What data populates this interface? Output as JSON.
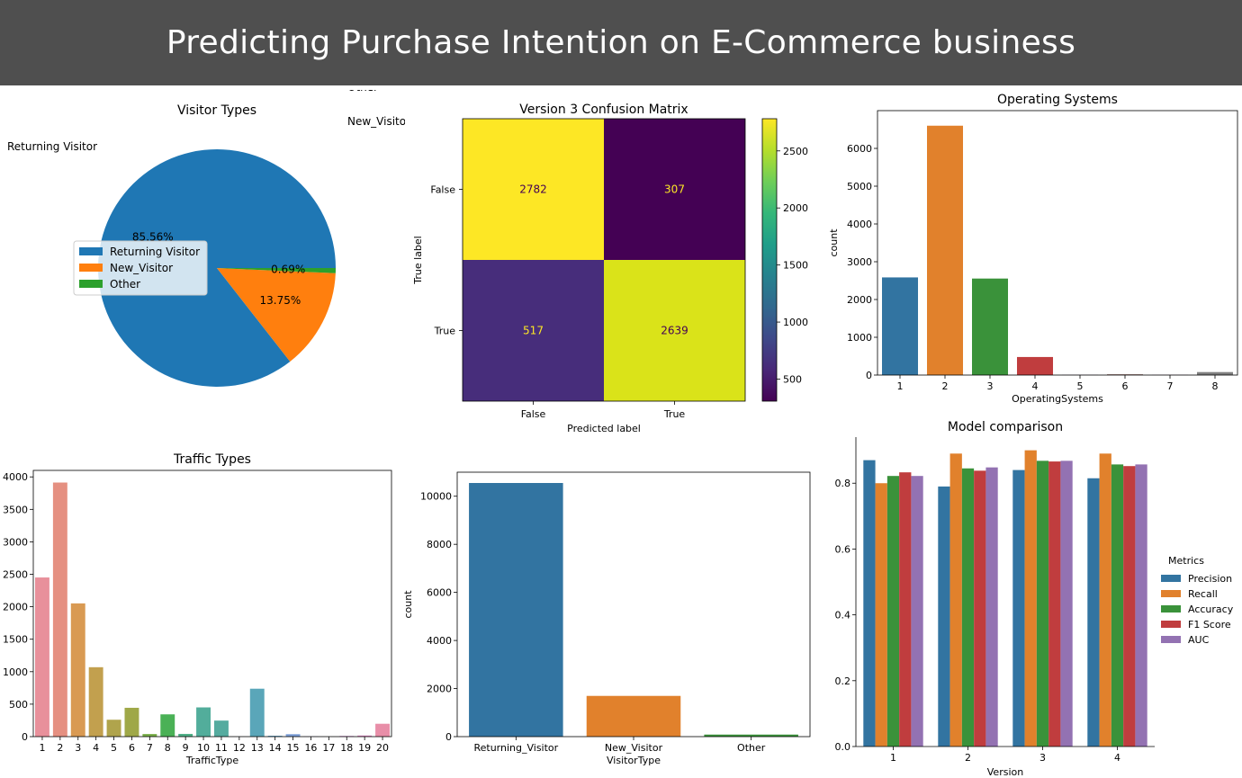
{
  "page": {
    "title": "Predicting Purchase Intention on E-Commerce business"
  },
  "chart_data": [
    {
      "id": "visitor_pie",
      "type": "pie",
      "title": "Visitor Types",
      "slices": [
        {
          "label": "Returning Visitor",
          "value": 85.56,
          "pct_label": "85.56%",
          "color": "#1f77b4"
        },
        {
          "label": "New_Visitor",
          "value": 13.75,
          "pct_label": "13.75%",
          "color": "#ff7f0e"
        },
        {
          "label": "Other",
          "value": 0.69,
          "pct_label": "0.69%",
          "color": "#2ca02c"
        }
      ],
      "legend": {
        "position": "center-left",
        "entries": [
          "Returning Visitor",
          "New_Visitor",
          "Other"
        ]
      }
    },
    {
      "id": "confusion_matrix",
      "type": "heatmap",
      "title": "Version 3 Confusion Matrix",
      "xlabel": "Predicted label",
      "ylabel": "True label",
      "x_categories": [
        "False",
        "True"
      ],
      "y_categories": [
        "False",
        "True"
      ],
      "values": [
        [
          2782,
          307
        ],
        [
          517,
          2639
        ]
      ],
      "cell_colors": [
        [
          "#fde725",
          "#440154"
        ],
        [
          "#472d7b",
          "#dae319"
        ]
      ],
      "text_colors": [
        [
          "#440154",
          "#fde725"
        ],
        [
          "#fde725",
          "#440154"
        ]
      ],
      "colorbar": {
        "ticks": [
          500,
          1000,
          1500,
          2000,
          2500
        ],
        "range": [
          307,
          2782
        ]
      }
    },
    {
      "id": "os_counts",
      "type": "bar",
      "title": "Operating Systems",
      "xlabel": "OperatingSystems",
      "ylabel": "count",
      "categories": [
        "1",
        "2",
        "3",
        "4",
        "5",
        "6",
        "7",
        "8"
      ],
      "values": [
        2585,
        6601,
        2555,
        478,
        6,
        19,
        7,
        79
      ],
      "colors": [
        "#3274a1",
        "#e1812c",
        "#3a923a",
        "#c03d3e",
        "#9372b2",
        "#845b53",
        "#d684bd",
        "#7f7f7f"
      ],
      "ylim": [
        0,
        7000
      ],
      "yticks": [
        0,
        1000,
        2000,
        3000,
        4000,
        5000,
        6000
      ]
    },
    {
      "id": "traffic_counts",
      "type": "bar",
      "title": "Traffic Types",
      "xlabel": "TrafficType",
      "ylabel": "",
      "categories": [
        "1",
        "2",
        "3",
        "4",
        "5",
        "6",
        "7",
        "8",
        "9",
        "10",
        "11",
        "12",
        "13",
        "14",
        "15",
        "16",
        "17",
        "18",
        "19",
        "20"
      ],
      "values": [
        2451,
        3913,
        2052,
        1069,
        260,
        444,
        40,
        343,
        42,
        450,
        247,
        1,
        738,
        13,
        38,
        3,
        1,
        10,
        17,
        198
      ],
      "colors": [
        "#e8909b",
        "#e59081",
        "#d99a53",
        "#c2a04e",
        "#b0a44c",
        "#9fa848",
        "#78ae47",
        "#4ab156",
        "#4fb087",
        "#52ad9b",
        "#55ab9f",
        "#57a9ab",
        "#5aa6b9",
        "#5ea2c8",
        "#7d9fd8",
        "#a09adb",
        "#bd93da",
        "#d68bd8",
        "#e188c4",
        "#e88ea8"
      ],
      "ylim": [
        0,
        4100
      ],
      "yticks": [
        0,
        500,
        1000,
        1500,
        2000,
        2500,
        3000,
        3500,
        4000
      ]
    },
    {
      "id": "visitor_counts",
      "type": "bar",
      "title": "",
      "xlabel": "VisitorType",
      "ylabel": "count",
      "categories": [
        "Returning_Visitor",
        "New_Visitor",
        "Other"
      ],
      "values": [
        10551,
        1694,
        85
      ],
      "colors": [
        "#3274a1",
        "#e1812c",
        "#3a923a"
      ],
      "ylim": [
        0,
        11000
      ],
      "yticks": [
        0,
        2000,
        4000,
        6000,
        8000,
        10000
      ]
    },
    {
      "id": "model_comparison",
      "type": "bar",
      "title": "Model comparison",
      "xlabel": "Version",
      "ylabel": "",
      "categories": [
        "1",
        "2",
        "3",
        "4"
      ],
      "series": [
        {
          "name": "Precision",
          "values": [
            0.87,
            0.79,
            0.84,
            0.815
          ],
          "color": "#3274a1"
        },
        {
          "name": "Recall",
          "values": [
            0.8,
            0.89,
            0.9,
            0.89
          ],
          "color": "#e1812c"
        },
        {
          "name": "Accuracy",
          "values": [
            0.822,
            0.845,
            0.868,
            0.857
          ],
          "color": "#3a923a"
        },
        {
          "name": "F1 Score",
          "values": [
            0.833,
            0.838,
            0.866,
            0.852
          ],
          "color": "#c03d3e"
        },
        {
          "name": "AUC",
          "values": [
            0.822,
            0.848,
            0.868,
            0.857
          ],
          "color": "#9372b2"
        }
      ],
      "legend": {
        "title": "Metrics",
        "position": "right"
      },
      "ylim": [
        0,
        0.94
      ],
      "yticks": [
        0.0,
        0.2,
        0.4,
        0.6,
        0.8
      ],
      "ytick_labels": [
        "0.0",
        "0.2",
        "0.4",
        "0.6",
        "0.8"
      ]
    }
  ]
}
